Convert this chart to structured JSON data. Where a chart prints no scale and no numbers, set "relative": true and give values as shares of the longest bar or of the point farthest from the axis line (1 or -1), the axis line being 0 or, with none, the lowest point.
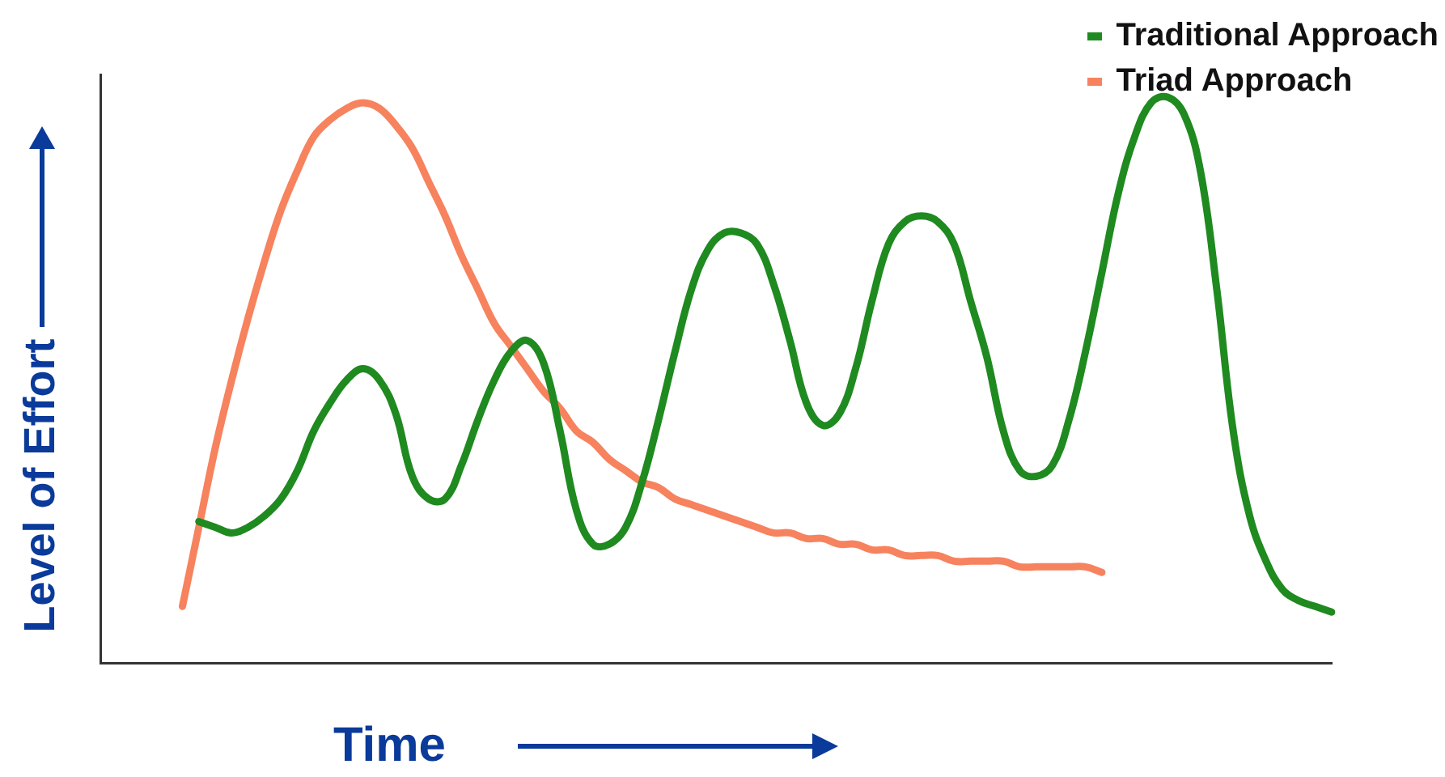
{
  "chart_data": {
    "type": "line",
    "xlabel": "Time",
    "ylabel": "Level of Effort",
    "relative": true,
    "legend": "top right",
    "grid": false,
    "marker": "none",
    "line_style": "solid",
    "categories": [
      null,
      null,
      null,
      null,
      null,
      null,
      null,
      null,
      null,
      null,
      null,
      null,
      null,
      null,
      null,
      null,
      null,
      null,
      null,
      null,
      null,
      null,
      null,
      null,
      null,
      null,
      null,
      null,
      null,
      null,
      null,
      null,
      null,
      null,
      null,
      null,
      null,
      null,
      null,
      null,
      null,
      null,
      null,
      null,
      null,
      null,
      null,
      null,
      null,
      null,
      null,
      null,
      null,
      null,
      null,
      null,
      null,
      null,
      null,
      null,
      null,
      null,
      null,
      null,
      null,
      null,
      null,
      null,
      null,
      null,
      null,
      null,
      null,
      null,
      null,
      null
    ],
    "series": [
      {
        "name": "Traditional Approach",
        "color": "#1f8a1f",
        "values": [
          null,
          null,
          null,
          null,
          null,
          null,
          0.25,
          0.24,
          0.23,
          0.24,
          0.26,
          0.29,
          0.34,
          0.41,
          0.46,
          0.5,
          0.52,
          0.5,
          0.44,
          0.33,
          0.29,
          0.29,
          0.35,
          0.43,
          0.5,
          0.55,
          0.57,
          0.53,
          0.41,
          0.27,
          0.21,
          0.21,
          0.24,
          0.32,
          0.43,
          0.55,
          0.66,
          0.73,
          0.76,
          0.76,
          0.74,
          0.67,
          0.57,
          0.46,
          0.42,
          0.44,
          0.52,
          0.64,
          0.74,
          0.78,
          0.79,
          0.78,
          0.74,
          0.64,
          0.54,
          0.41,
          0.34,
          0.33,
          0.35,
          0.43,
          0.55,
          0.69,
          0.83,
          0.93,
          0.99,
          1,
          0.97,
          0.87,
          0.66,
          0.41,
          0.26,
          0.18,
          0.13,
          0.11,
          0.1,
          0.09
        ]
      },
      {
        "name": "Triad Approach",
        "color": "#f7825e",
        "values": [
          null,
          null,
          null,
          null,
          null,
          0.1,
          0.24,
          0.38,
          0.5,
          0.61,
          0.71,
          0.8,
          0.87,
          0.93,
          0.96,
          0.98,
          0.99,
          0.98,
          0.95,
          0.91,
          0.85,
          0.79,
          0.72,
          0.66,
          0.6,
          0.56,
          0.52,
          0.48,
          0.45,
          0.41,
          0.39,
          0.36,
          0.34,
          0.32,
          0.31,
          0.29,
          0.28,
          0.27,
          0.26,
          0.25,
          0.24,
          0.23,
          0.23,
          0.22,
          0.22,
          0.21,
          0.21,
          0.2,
          0.2,
          0.19,
          0.19,
          0.19,
          0.18,
          0.18,
          0.18,
          0.18,
          0.17,
          0.17,
          0.17,
          0.17,
          0.17,
          0.16,
          null,
          null,
          null,
          null,
          null,
          null,
          null,
          null,
          null,
          null,
          null,
          null,
          null,
          null
        ]
      }
    ]
  }
}
